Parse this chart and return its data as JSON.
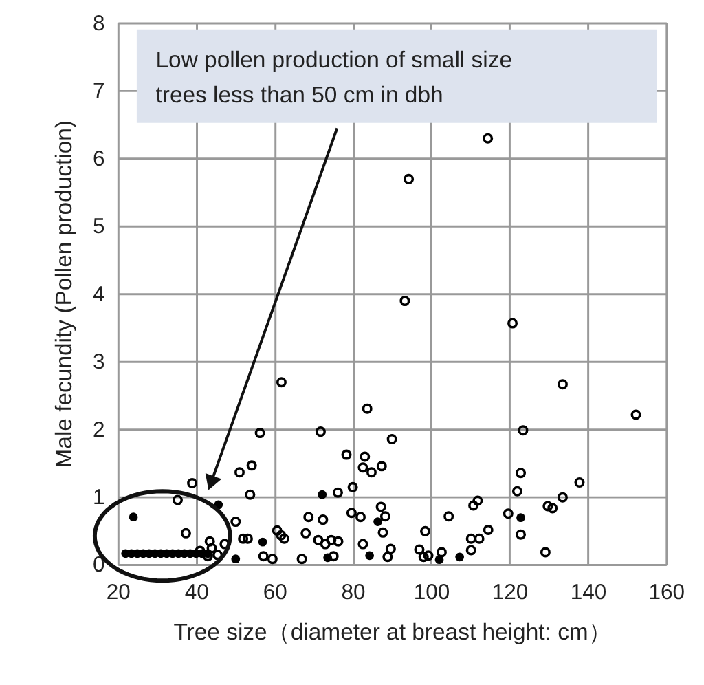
{
  "chart_data": {
    "type": "scatter",
    "xlabel": "Tree size（diameter at breast height: cm）",
    "ylabel": "Male fecundity (Pollen production)",
    "xlim": [
      20,
      160
    ],
    "ylim": [
      0,
      8
    ],
    "xticks": [
      20,
      40,
      60,
      80,
      100,
      120,
      140,
      160
    ],
    "yticks": [
      0,
      1,
      2,
      3,
      4,
      5,
      6,
      7,
      8
    ],
    "grid": true,
    "marker": "circle",
    "annotations": [
      {
        "text": "Low pollen production of small size\ntrees less than 50 cm in dbh",
        "x": 43.8,
        "y": 1.2
      }
    ],
    "series": [
      {
        "color": "#000000",
        "x": [
          56.3,
          71.8,
          83.7,
          78.4,
          54.2,
          51.1,
          39.0,
          53.8,
          76.2,
          80.0,
          35.3,
          82.6,
          68.7,
          72.4,
          79.7,
          82.0,
          50.1,
          37.4,
          60.7,
          61.7,
          62.5,
          52.0,
          53.2,
          68.0,
          71.2,
          73.0,
          74.5,
          76.3,
          82.6,
          43.5,
          47.3,
          57.2,
          59.5,
          67.0,
          75.1,
          45.5,
          41.0,
          43.0,
          44.0,
          90.0,
          83.1,
          84.8,
          87.4,
          152.3,
          123.5,
          122.9,
          122.0,
          137.9,
          133.6,
          131.0,
          129.8,
          119.7,
          122.9,
          129.2,
          104.5,
          110.8,
          111.9,
          114.6,
          112.3,
          110.2,
          110.2,
          98.5,
          97.0,
          98.1,
          99.3,
          102.7,
          87.2,
          88.3,
          87.7,
          89.7,
          88.9,
          114.5,
          94.3,
          93.3,
          120.8,
          61.8,
          133.6
        ],
        "values": [
          1.94,
          1.96,
          2.3,
          1.62,
          1.46,
          1.36,
          1.2,
          1.03,
          1.06,
          1.14,
          0.95,
          1.43,
          0.7,
          0.66,
          0.76,
          0.7,
          0.63,
          0.46,
          0.5,
          0.43,
          0.38,
          0.38,
          0.38,
          0.46,
          0.36,
          0.3,
          0.36,
          0.34,
          0.3,
          0.34,
          0.3,
          0.12,
          0.08,
          0.08,
          0.12,
          0.14,
          0.2,
          0.12,
          0.24,
          1.85,
          1.59,
          1.36,
          1.45,
          2.21,
          1.98,
          1.35,
          1.08,
          1.21,
          0.99,
          0.83,
          0.86,
          0.75,
          0.44,
          0.18,
          0.71,
          0.87,
          0.94,
          0.51,
          0.38,
          0.38,
          0.21,
          0.49,
          0.22,
          0.11,
          0.13,
          0.18,
          0.85,
          0.71,
          0.47,
          0.23,
          0.11,
          6.29,
          5.69,
          3.89,
          3.56,
          2.69,
          2.66
        ]
      },
      {
        "color": "#000000",
        "x": [
          24.0,
          72.2,
          45.7,
          57.0,
          50.1,
          73.6,
          84.3,
          86.4,
          122.9,
          102.1,
          107.3,
          22.0,
          23.5,
          25.0,
          26.5,
          28.0,
          29.5,
          31.0,
          32.5,
          34.0,
          35.5,
          37.0,
          38.5,
          40.0,
          41.5,
          43.0
        ],
        "values": [
          0.7,
          1.03,
          0.88,
          0.33,
          0.08,
          0.1,
          0.13,
          0.63,
          0.69,
          0.07,
          0.11,
          0.16,
          0.16,
          0.16,
          0.16,
          0.16,
          0.16,
          0.16,
          0.16,
          0.16,
          0.16,
          0.16,
          0.16,
          0.16,
          0.16,
          0.16
        ]
      }
    ]
  }
}
